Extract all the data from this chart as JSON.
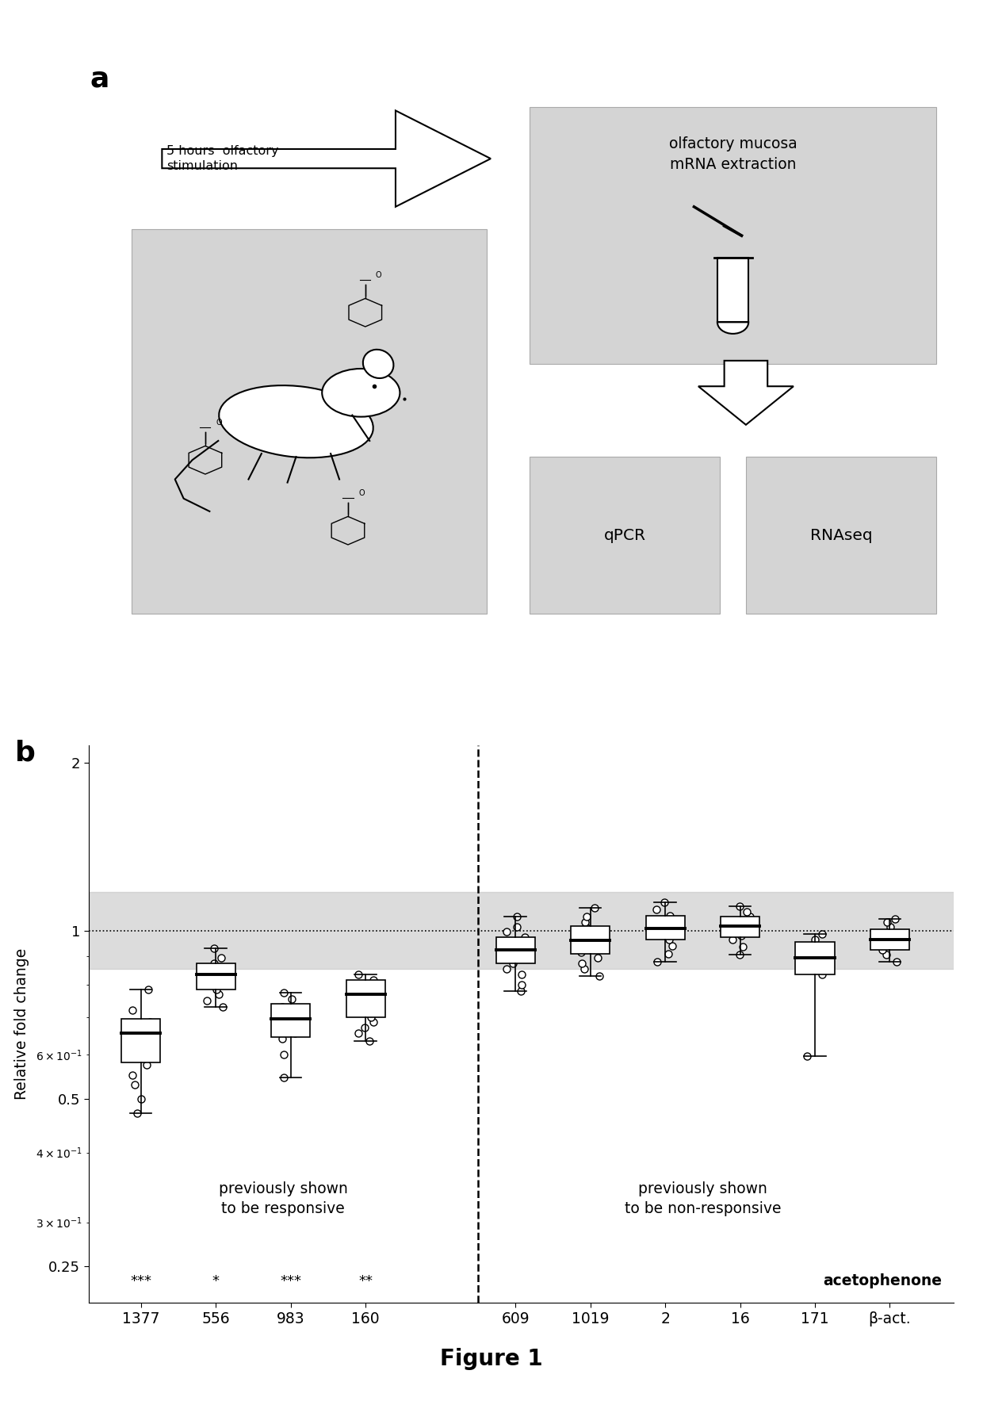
{
  "figure_title": "Figure 1",
  "colors": {
    "background": "#ffffff",
    "panel_bg_gray": "#d4d4d4",
    "box_fill": "#ffffff",
    "box_edge": "#000000",
    "shade_band": "#c0c0c0",
    "arrow_fill": "#ffffff"
  },
  "panel_b": {
    "ylabel": "Relative fold change",
    "shade_band_low": 0.855,
    "shade_band_high": 1.175,
    "dotted_line_y": 1.0,
    "dashed_vline_x": 4.5,
    "groups": [
      "1377",
      "556",
      "983",
      "160",
      "609",
      "1019",
      "2",
      "16",
      "171",
      "β-act."
    ],
    "group_positions": [
      0,
      1,
      2,
      3,
      5,
      6,
      7,
      8,
      9,
      10
    ],
    "significance": [
      "***",
      "*",
      "***",
      "**",
      "",
      "",
      "",
      "",
      "",
      ""
    ],
    "left_text_line1": "previously shown",
    "left_text_line2": "to be responsive",
    "right_text_line1": "previously shown",
    "right_text_line2": "to be non-responsive",
    "acetophenone_text": "acetophenone",
    "box_data": {
      "1377": {
        "median": 0.655,
        "q1": 0.58,
        "q3": 0.695,
        "whisker_low": 0.47,
        "whisker_high": 0.785,
        "points": [
          0.47,
          0.5,
          0.53,
          0.55,
          0.575,
          0.59,
          0.61,
          0.63,
          0.655,
          0.67,
          0.685,
          0.72,
          0.785
        ]
      },
      "556": {
        "median": 0.835,
        "q1": 0.785,
        "q3": 0.875,
        "whisker_low": 0.73,
        "whisker_high": 0.93,
        "points": [
          0.73,
          0.75,
          0.77,
          0.785,
          0.8,
          0.815,
          0.83,
          0.845,
          0.86,
          0.875,
          0.895,
          0.93
        ]
      },
      "983": {
        "median": 0.695,
        "q1": 0.645,
        "q3": 0.74,
        "whisker_low": 0.545,
        "whisker_high": 0.775,
        "points": [
          0.545,
          0.6,
          0.64,
          0.655,
          0.67,
          0.685,
          0.7,
          0.715,
          0.73,
          0.755,
          0.775
        ]
      },
      "160": {
        "median": 0.77,
        "q1": 0.7,
        "q3": 0.815,
        "whisker_low": 0.635,
        "whisker_high": 0.835,
        "points": [
          0.635,
          0.655,
          0.67,
          0.685,
          0.7,
          0.72,
          0.745,
          0.765,
          0.785,
          0.8,
          0.815,
          0.835
        ]
      },
      "609": {
        "median": 0.925,
        "q1": 0.875,
        "q3": 0.975,
        "whisker_low": 0.78,
        "whisker_high": 1.06,
        "points": [
          0.78,
          0.8,
          0.835,
          0.855,
          0.875,
          0.895,
          0.915,
          0.935,
          0.955,
          0.975,
          0.995,
          1.015,
          1.06
        ]
      },
      "1019": {
        "median": 0.96,
        "q1": 0.91,
        "q3": 1.02,
        "whisker_low": 0.83,
        "whisker_high": 1.1,
        "points": [
          0.83,
          0.855,
          0.875,
          0.895,
          0.915,
          0.935,
          0.955,
          0.975,
          0.995,
          1.015,
          1.035,
          1.06,
          1.1
        ]
      },
      "2": {
        "median": 1.01,
        "q1": 0.965,
        "q3": 1.065,
        "whisker_low": 0.88,
        "whisker_high": 1.125,
        "points": [
          0.88,
          0.91,
          0.94,
          0.965,
          0.985,
          1.005,
          1.025,
          1.045,
          1.065,
          1.09,
          1.125
        ]
      },
      "16": {
        "median": 1.02,
        "q1": 0.975,
        "q3": 1.06,
        "whisker_low": 0.905,
        "whisker_high": 1.105,
        "points": [
          0.905,
          0.935,
          0.965,
          0.98,
          1.0,
          1.02,
          1.04,
          1.06,
          1.08,
          1.105
        ]
      },
      "171": {
        "median": 0.895,
        "q1": 0.835,
        "q3": 0.955,
        "whisker_low": 0.595,
        "whisker_high": 0.985,
        "points": [
          0.595,
          0.835,
          0.855,
          0.875,
          0.895,
          0.915,
          0.945,
          0.965,
          0.985
        ]
      },
      "β-act.": {
        "median": 0.965,
        "q1": 0.925,
        "q3": 1.005,
        "whisker_low": 0.88,
        "whisker_high": 1.05,
        "points": [
          0.88,
          0.905,
          0.925,
          0.945,
          0.965,
          0.98,
          1.0,
          1.015,
          1.035,
          1.05
        ]
      }
    }
  }
}
